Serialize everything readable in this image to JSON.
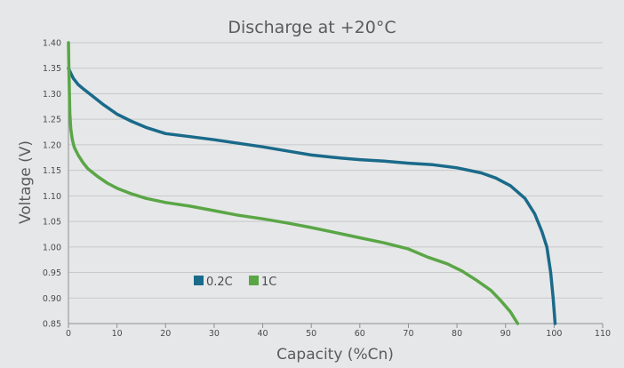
{
  "chart_data": {
    "type": "line",
    "title": "Discharge at +20°C",
    "xlabel": "Capacity (%Cn)",
    "ylabel": "Voltage (V)",
    "xlim": [
      0,
      110
    ],
    "ylim": [
      0.85,
      1.4
    ],
    "x_ticks": [
      "0",
      "10",
      "20",
      "30",
      "40",
      "50",
      "60",
      "70",
      "80",
      "90",
      "100",
      "110"
    ],
    "y_ticks": [
      "1.40",
      "1.35",
      "1.30",
      "1.25",
      "1.20",
      "1.15",
      "1.10",
      "1.05",
      "1.00",
      "0.95",
      "0.90",
      "0.85"
    ],
    "grid": "horizontal",
    "legend_position": "lower-left",
    "series": [
      {
        "name": "0.2C",
        "color": "#1a6a8a",
        "points": [
          [
            0,
            1.35
          ],
          [
            0.5,
            1.34
          ],
          [
            1,
            1.33
          ],
          [
            2,
            1.318
          ],
          [
            3,
            1.31
          ],
          [
            5,
            1.295
          ],
          [
            7,
            1.28
          ],
          [
            10,
            1.26
          ],
          [
            13,
            1.246
          ],
          [
            16,
            1.234
          ],
          [
            20,
            1.222
          ],
          [
            25,
            1.216
          ],
          [
            30,
            1.21
          ],
          [
            35,
            1.203
          ],
          [
            40,
            1.196
          ],
          [
            45,
            1.188
          ],
          [
            50,
            1.18
          ],
          [
            55,
            1.175
          ],
          [
            60,
            1.171
          ],
          [
            65,
            1.168
          ],
          [
            70,
            1.164
          ],
          [
            75,
            1.161
          ],
          [
            80,
            1.155
          ],
          [
            85,
            1.145
          ],
          [
            88,
            1.135
          ],
          [
            91,
            1.12
          ],
          [
            94,
            1.095
          ],
          [
            96,
            1.065
          ],
          [
            97.5,
            1.03
          ],
          [
            98.5,
            1.0
          ],
          [
            99.3,
            0.95
          ],
          [
            99.8,
            0.9
          ],
          [
            100.2,
            0.85
          ]
        ]
      },
      {
        "name": "1C",
        "color": "#5aa646",
        "points": [
          [
            0,
            1.4
          ],
          [
            0.1,
            1.35
          ],
          [
            0.2,
            1.3
          ],
          [
            0.3,
            1.26
          ],
          [
            0.5,
            1.23
          ],
          [
            0.8,
            1.21
          ],
          [
            1.2,
            1.195
          ],
          [
            2,
            1.18
          ],
          [
            3,
            1.165
          ],
          [
            4,
            1.153
          ],
          [
            6,
            1.138
          ],
          [
            8,
            1.125
          ],
          [
            10,
            1.115
          ],
          [
            13,
            1.104
          ],
          [
            16,
            1.095
          ],
          [
            20,
            1.087
          ],
          [
            25,
            1.08
          ],
          [
            30,
            1.071
          ],
          [
            35,
            1.062
          ],
          [
            40,
            1.055
          ],
          [
            45,
            1.047
          ],
          [
            50,
            1.038
          ],
          [
            55,
            1.028
          ],
          [
            60,
            1.018
          ],
          [
            65,
            1.008
          ],
          [
            70,
            0.996
          ],
          [
            74,
            0.98
          ],
          [
            78,
            0.967
          ],
          [
            81,
            0.953
          ],
          [
            84,
            0.935
          ],
          [
            87,
            0.915
          ],
          [
            89,
            0.895
          ],
          [
            91,
            0.873
          ],
          [
            92.5,
            0.85
          ]
        ]
      }
    ]
  }
}
